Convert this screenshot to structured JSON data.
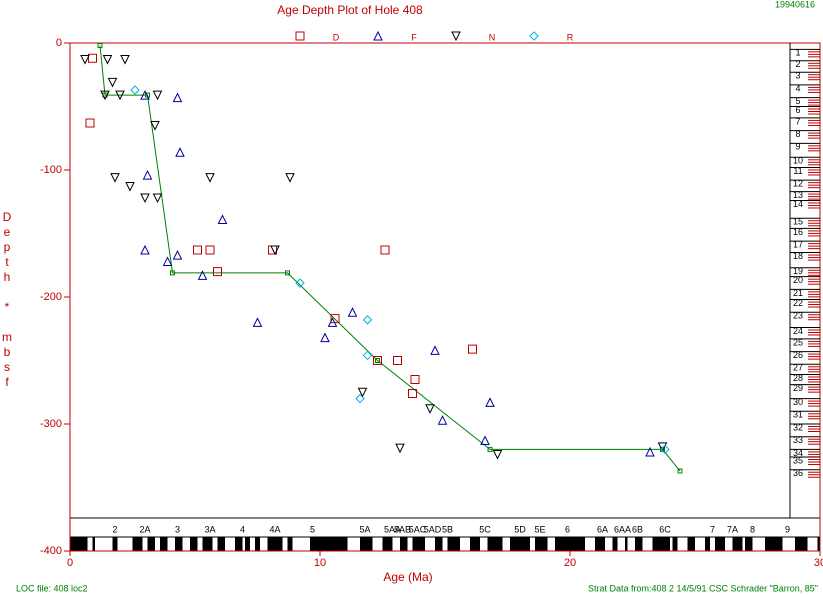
{
  "chart_data": {
    "type": "scatter",
    "title": "Age Depth Plot of Hole 408",
    "date": "19940616",
    "x_label": "Age (Ma)",
    "y_label": "Depth * mbsf",
    "footer_left": "LOC file: 408 loc2",
    "footer_right": "Strat Data from:408 2 14/5/91 CSC Schrader \"Barron, 85\"",
    "xlim": [
      0,
      30
    ],
    "xticks": [
      0,
      10,
      20,
      30
    ],
    "ylim": [
      -400,
      0
    ],
    "yticks": [
      0,
      -100,
      -200,
      -300,
      -400
    ],
    "frame_color": "#c00000",
    "series": [
      {
        "name": "D",
        "color": "#c00000",
        "marker": "square",
        "x": [
          0.9,
          0.8,
          5.1,
          5.6,
          5.9,
          8.1,
          10.6,
          12.6,
          12.3,
          13.1,
          13.8,
          16.1,
          13.7
        ],
        "y": [
          -12,
          -63,
          -163,
          -163,
          -180,
          -163,
          -217,
          -163,
          -250,
          -250,
          -265,
          -241,
          -276
        ]
      },
      {
        "name": "F",
        "color": "#0000a0",
        "marker": "triangle",
        "x": [
          3.0,
          4.3,
          4.4,
          3.1,
          3.0,
          3.9,
          4.3,
          5.3,
          6.1,
          7.5,
          10.2,
          10.5,
          11.3,
          14.6,
          14.9,
          16.6,
          16.8,
          23.2
        ],
        "y": [
          -41,
          -43,
          -86,
          -104,
          -163,
          -172,
          -167,
          -183,
          -139,
          -220,
          -232,
          -220,
          -212,
          -242,
          -297,
          -313,
          -283,
          -322
        ]
      },
      {
        "name": "N",
        "color": "#000000",
        "marker": "inverted-triangle",
        "x": [
          0.6,
          1.5,
          2.2,
          1.4,
          1.7,
          2.0,
          1.8,
          2.4,
          3.0,
          3.5,
          3.4,
          3.5,
          5.6,
          8.2,
          8.8,
          11.7,
          13.2,
          14.4,
          17.1,
          23.7
        ],
        "y": [
          -13,
          -13,
          -13,
          -41,
          -31,
          -41,
          -106,
          -113,
          -122,
          -41,
          -65,
          -122,
          -106,
          -163,
          -106,
          -275,
          -319,
          -288,
          -324,
          -318
        ]
      },
      {
        "name": "R",
        "color": "#00b0e0",
        "marker": "diamond",
        "x": [
          2.6,
          9.2,
          11.9,
          11.9,
          11.6,
          23.8
        ],
        "y": [
          -37,
          -189,
          -218,
          -246,
          -280,
          -320
        ]
      }
    ],
    "line_of_correlation": {
      "color": "#008000",
      "x": [
        1.2,
        1.4,
        3.1,
        4.1,
        8.7,
        12.3,
        16.8,
        23.7,
        24.4
      ],
      "y": [
        -2,
        -41,
        -41,
        -181,
        -181,
        -250,
        -320,
        -320,
        -337
      ]
    },
    "chrons": {
      "labels": [
        "2",
        "2A",
        "3",
        "3A",
        "4",
        "4A",
        "5",
        "5A",
        "5AA",
        "5AB",
        "5AC",
        "5AD",
        "5B",
        "5C",
        "5D",
        "5E",
        "6",
        "6A",
        "6AA",
        "6B",
        "6C",
        "7",
        "7A",
        "8",
        "9"
      ],
      "x": [
        1.8,
        3.0,
        4.3,
        5.6,
        6.9,
        8.2,
        9.7,
        11.8,
        12.9,
        13.3,
        13.9,
        14.5,
        15.1,
        16.6,
        18.0,
        18.8,
        19.9,
        21.3,
        22.1,
        22.7,
        23.8,
        25.7,
        26.5,
        27.3,
        28.7
      ]
    },
    "normal_polarity": [
      [
        0,
        0.7
      ],
      [
        0.9,
        1.0
      ],
      [
        1.7,
        1.9
      ],
      [
        2.5,
        2.9
      ],
      [
        3.1,
        3.4
      ],
      [
        3.6,
        3.9
      ],
      [
        4.2,
        4.5
      ],
      [
        4.8,
        5.1
      ],
      [
        5.3,
        5.7
      ],
      [
        5.9,
        6.2
      ],
      [
        6.6,
        6.9
      ],
      [
        7.0,
        7.2
      ],
      [
        7.4,
        7.6
      ],
      [
        7.9,
        8.5
      ],
      [
        8.7,
        8.9
      ],
      [
        9.6,
        11.1
      ],
      [
        11.6,
        12.1
      ],
      [
        12.5,
        12.9
      ],
      [
        13.2,
        13.5
      ],
      [
        13.7,
        14.2
      ],
      [
        14.6,
        14.9
      ],
      [
        15.1,
        15.6
      ],
      [
        16.0,
        16.4
      ],
      [
        16.7,
        17.3
      ],
      [
        17.6,
        18.4
      ],
      [
        18.6,
        19.1
      ],
      [
        19.4,
        20.6
      ],
      [
        21.0,
        21.4
      ],
      [
        21.7,
        21.9
      ],
      [
        22.2,
        22.3
      ],
      [
        22.6,
        22.9
      ],
      [
        23.3,
        24.0
      ],
      [
        24.1,
        24.3
      ],
      [
        24.7,
        25.0
      ],
      [
        25.4,
        25.6
      ],
      [
        25.8,
        26.2
      ],
      [
        26.5,
        26.9
      ],
      [
        27.0,
        27.3
      ],
      [
        27.8,
        28.5
      ],
      [
        29.0,
        29.5
      ],
      [
        29.9,
        30
      ]
    ],
    "cores": {
      "labels": [
        "1",
        "2",
        "3",
        "4",
        "5",
        "6",
        "7",
        "8",
        "9",
        "10",
        "11",
        "12",
        "13",
        "14",
        "15",
        "16",
        "17",
        "18",
        "19",
        "20",
        "21",
        "22",
        "23",
        "24",
        "25",
        "26",
        "27",
        "28",
        "29",
        "30",
        "31",
        "32",
        "33",
        "34",
        "35",
        "36"
      ],
      "depths": [
        -5,
        -14,
        -23,
        -33,
        -43,
        -50,
        -59,
        -69,
        -79,
        -90,
        -98,
        -108,
        -117,
        -124,
        -138,
        -146,
        -156,
        -165,
        -177,
        -184,
        -194,
        -202,
        -212,
        -224,
        -233,
        -243,
        -253,
        -261,
        -269,
        -280,
        -290,
        -300,
        -310,
        -320,
        -326,
        -336
      ]
    }
  }
}
